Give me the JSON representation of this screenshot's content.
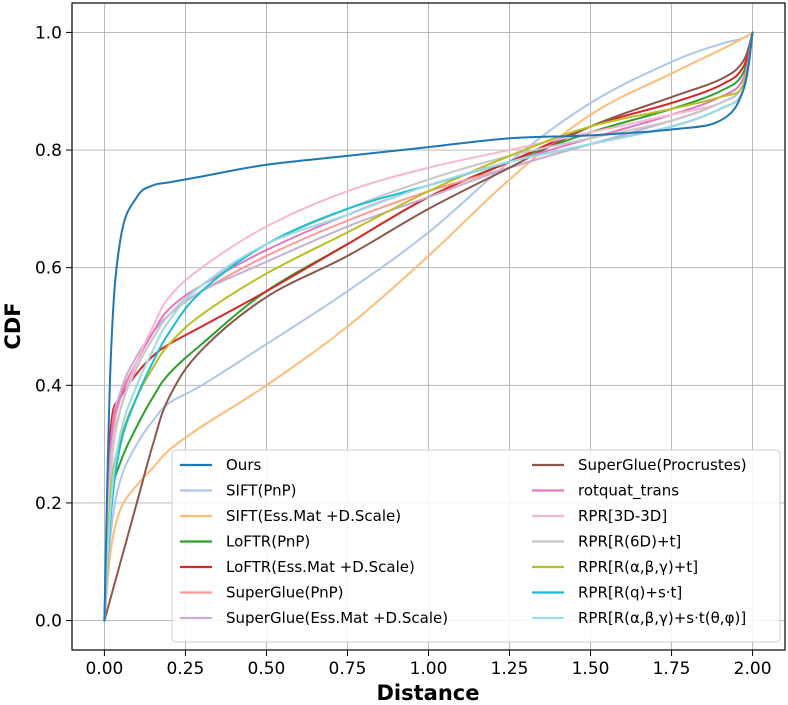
{
  "chart_data": {
    "type": "line",
    "title": "",
    "xlabel": "Distance",
    "ylabel": "CDF",
    "xlim": [
      -0.1,
      2.1
    ],
    "ylim": [
      -0.05,
      1.05
    ],
    "xticks": [
      0.0,
      0.25,
      0.5,
      0.75,
      1.0,
      1.25,
      1.5,
      1.75,
      2.0
    ],
    "yticks": [
      0.0,
      0.2,
      0.4,
      0.6,
      0.8,
      1.0
    ],
    "xtick_labels": [
      "0.00",
      "0.25",
      "0.50",
      "0.75",
      "1.00",
      "1.25",
      "1.50",
      "1.75",
      "2.00"
    ],
    "ytick_labels": [
      "0.0",
      "0.2",
      "0.4",
      "0.6",
      "0.8",
      "1.0"
    ],
    "grid": true,
    "legend_position": "lower-right",
    "x": [
      0.0,
      0.02,
      0.05,
      0.1,
      0.15,
      0.2,
      0.3,
      0.5,
      0.75,
      1.0,
      1.25,
      1.5,
      1.75,
      1.9,
      1.97,
      2.0
    ],
    "series": [
      {
        "name": "Ours",
        "color": "#1f77b4",
        "values": [
          0.0,
          0.45,
          0.65,
          0.72,
          0.74,
          0.745,
          0.755,
          0.775,
          0.79,
          0.805,
          0.82,
          0.825,
          0.835,
          0.85,
          0.9,
          1.0
        ]
      },
      {
        "name": "SIFT(PnP)",
        "color": "#aec7e8",
        "values": [
          0.0,
          0.15,
          0.24,
          0.3,
          0.34,
          0.37,
          0.4,
          0.47,
          0.56,
          0.66,
          0.78,
          0.88,
          0.95,
          0.98,
          0.99,
          1.0
        ]
      },
      {
        "name": "SIFT(Ess.Mat +D.Scale)",
        "color": "#ffbb78",
        "values": [
          0.0,
          0.12,
          0.19,
          0.23,
          0.26,
          0.29,
          0.33,
          0.4,
          0.5,
          0.62,
          0.75,
          0.86,
          0.93,
          0.97,
          0.99,
          1.0
        ]
      },
      {
        "name": "LoFTR(PnP)",
        "color": "#2ca02c",
        "values": [
          0.0,
          0.2,
          0.27,
          0.33,
          0.38,
          0.42,
          0.47,
          0.56,
          0.64,
          0.72,
          0.78,
          0.83,
          0.87,
          0.9,
          0.93,
          1.0
        ]
      },
      {
        "name": "LoFTR(Ess.Mat +D.Scale)",
        "color": "#d62728",
        "values": [
          0.0,
          0.33,
          0.38,
          0.42,
          0.45,
          0.47,
          0.5,
          0.56,
          0.64,
          0.72,
          0.78,
          0.84,
          0.88,
          0.91,
          0.94,
          1.0
        ]
      },
      {
        "name": "SuperGlue(PnP)",
        "color": "#ff9896",
        "values": [
          0.0,
          0.28,
          0.38,
          0.44,
          0.49,
          0.52,
          0.56,
          0.62,
          0.68,
          0.73,
          0.77,
          0.81,
          0.84,
          0.87,
          0.9,
          1.0
        ]
      },
      {
        "name": "SuperGlue(Ess.Mat +D.Scale)",
        "color": "#c5b0d5",
        "values": [
          0.0,
          0.3,
          0.39,
          0.45,
          0.49,
          0.52,
          0.56,
          0.61,
          0.67,
          0.72,
          0.77,
          0.81,
          0.85,
          0.88,
          0.91,
          1.0
        ]
      },
      {
        "name": "SuperGlue(Procrustes)",
        "color": "#8c564b",
        "values": [
          0.0,
          0.04,
          0.1,
          0.2,
          0.3,
          0.38,
          0.46,
          0.55,
          0.62,
          0.7,
          0.77,
          0.84,
          0.89,
          0.92,
          0.95,
          1.0
        ]
      },
      {
        "name": "rotquat_trans",
        "color": "#e377c2",
        "values": [
          0.0,
          0.3,
          0.38,
          0.44,
          0.49,
          0.53,
          0.57,
          0.63,
          0.69,
          0.74,
          0.78,
          0.82,
          0.86,
          0.89,
          0.92,
          1.0
        ]
      },
      {
        "name": "RPR[3D-3D]",
        "color": "#f7b6d2",
        "values": [
          0.0,
          0.25,
          0.36,
          0.44,
          0.5,
          0.55,
          0.6,
          0.67,
          0.73,
          0.77,
          0.8,
          0.83,
          0.86,
          0.88,
          0.91,
          1.0
        ]
      },
      {
        "name": "RPR[R(6D)+t]",
        "color": "#c7c7c7",
        "values": [
          0.0,
          0.27,
          0.36,
          0.43,
          0.48,
          0.52,
          0.57,
          0.64,
          0.7,
          0.75,
          0.79,
          0.82,
          0.85,
          0.88,
          0.91,
          1.0
        ]
      },
      {
        "name": "RPR[R(α,β,γ)+t]",
        "color": "#bcbd22",
        "values": [
          0.0,
          0.22,
          0.31,
          0.38,
          0.43,
          0.47,
          0.52,
          0.59,
          0.66,
          0.73,
          0.79,
          0.84,
          0.87,
          0.89,
          0.91,
          1.0
        ]
      },
      {
        "name": "RPR[R(q)+s·t]",
        "color": "#17becf",
        "values": [
          0.0,
          0.18,
          0.3,
          0.38,
          0.44,
          0.49,
          0.56,
          0.64,
          0.7,
          0.74,
          0.78,
          0.81,
          0.84,
          0.87,
          0.9,
          1.0
        ]
      },
      {
        "name": "RPR[R(α,β,γ)+s·t(θ,φ)]",
        "color": "#9edae5",
        "values": [
          0.0,
          0.2,
          0.32,
          0.4,
          0.46,
          0.51,
          0.57,
          0.64,
          0.69,
          0.74,
          0.78,
          0.81,
          0.84,
          0.87,
          0.9,
          1.0
        ]
      }
    ]
  }
}
